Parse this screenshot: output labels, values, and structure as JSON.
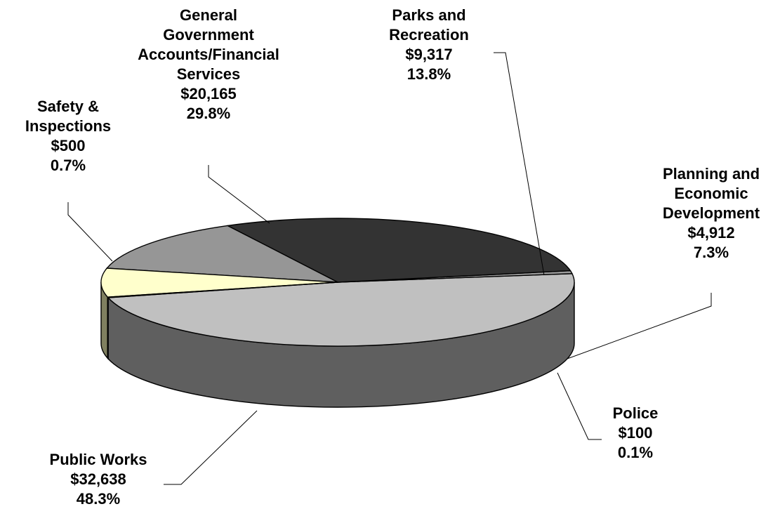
{
  "chart_data": {
    "type": "pie",
    "style": "3d-pie",
    "legend": "none",
    "slices": [
      {
        "name": "Public Works",
        "value": 32638,
        "value_label": "$32,638",
        "pct_label": "48.3%",
        "color": "#c0c0c0",
        "side_color": "#5f5f5f"
      },
      {
        "name": "Safety & Inspections",
        "value": 500,
        "value_label": "$500",
        "pct_label": "0.7%",
        "color": "#9a9a9a",
        "side_color": "#4a4a4a"
      },
      {
        "name": "General Government Accounts/Financial Services",
        "value": 20165,
        "value_label": "$20,165",
        "pct_label": "29.8%",
        "color": "#333333",
        "side_color": "#1a1a1a"
      },
      {
        "name": "Parks and Recreation",
        "value": 9317,
        "value_label": "$9,317",
        "pct_label": "13.8%",
        "color": "#969696",
        "side_color": "#555555"
      },
      {
        "name": "Planning and Economic Development",
        "value": 4912,
        "value_label": "$4,912",
        "pct_label": "7.3%",
        "color": "#ffffcc",
        "side_color": "#808060"
      },
      {
        "name": "Police",
        "value": 100,
        "value_label": "$100",
        "pct_label": "0.1%",
        "color": "#1a1a1a",
        "side_color": "#000000"
      }
    ],
    "labels": [
      {
        "slice": 0,
        "lines": [
          "Public Works",
          "$32,638",
          "48.3%"
        ]
      },
      {
        "slice": 1,
        "lines": [
          "Safety &",
          "Inspections",
          "$500",
          "0.7%"
        ]
      },
      {
        "slice": 2,
        "lines": [
          "General",
          "Government",
          "Accounts/Financial",
          "Services",
          "$20,165",
          "29.8%"
        ]
      },
      {
        "slice": 3,
        "lines": [
          "Parks and",
          "Recreation",
          "$9,317",
          "13.8%"
        ]
      },
      {
        "slice": 4,
        "lines": [
          "Planning and",
          "Economic",
          "Development",
          "$4,912",
          "7.3%"
        ]
      },
      {
        "slice": 5,
        "lines": [
          "Police",
          "$100",
          "0.1%"
        ]
      }
    ]
  }
}
